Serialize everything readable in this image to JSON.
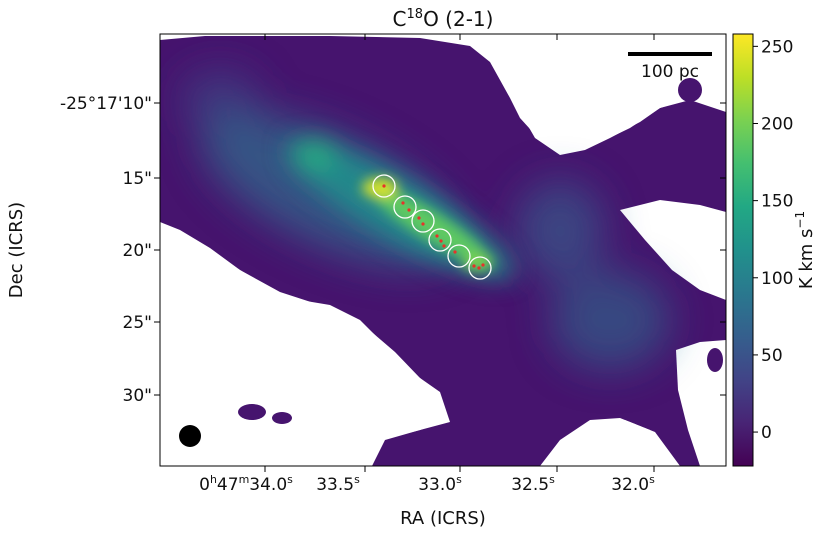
{
  "chart_data": {
    "type": "heatmap",
    "title": {
      "base": "C",
      "sup": "18",
      "rest": "O (2-1)"
    },
    "xlabel": "RA (ICRS)",
    "ylabel": "Dec (ICRS)",
    "x_ticks": [
      {
        "h": "0",
        "hu": "h",
        "m": "47",
        "mu": "m",
        "s": "34.0",
        "su": "s"
      },
      {
        "s": "33.5",
        "su": "s"
      },
      {
        "s": "33.0",
        "su": "s"
      },
      {
        "s": "32.5",
        "su": "s"
      },
      {
        "s": "32.0",
        "su": "s"
      }
    ],
    "y_ticks": [
      "-25°17'10\"",
      "15\"",
      "20\"",
      "25\"",
      "30\""
    ],
    "colorbar": {
      "label_main": "K km s",
      "label_sup": "−1",
      "ticks": [
        "0",
        "50",
        "100",
        "150",
        "200",
        "250"
      ],
      "range": [
        -22,
        258
      ],
      "colormap": "viridis"
    },
    "scalebar_label": "100 pc",
    "beam": "filled black circle, bottom-left",
    "sources": {
      "count_circles": 6,
      "count_markers": 12,
      "circle_color": "#ffffff",
      "marker_color": "#e8312a"
    }
  }
}
